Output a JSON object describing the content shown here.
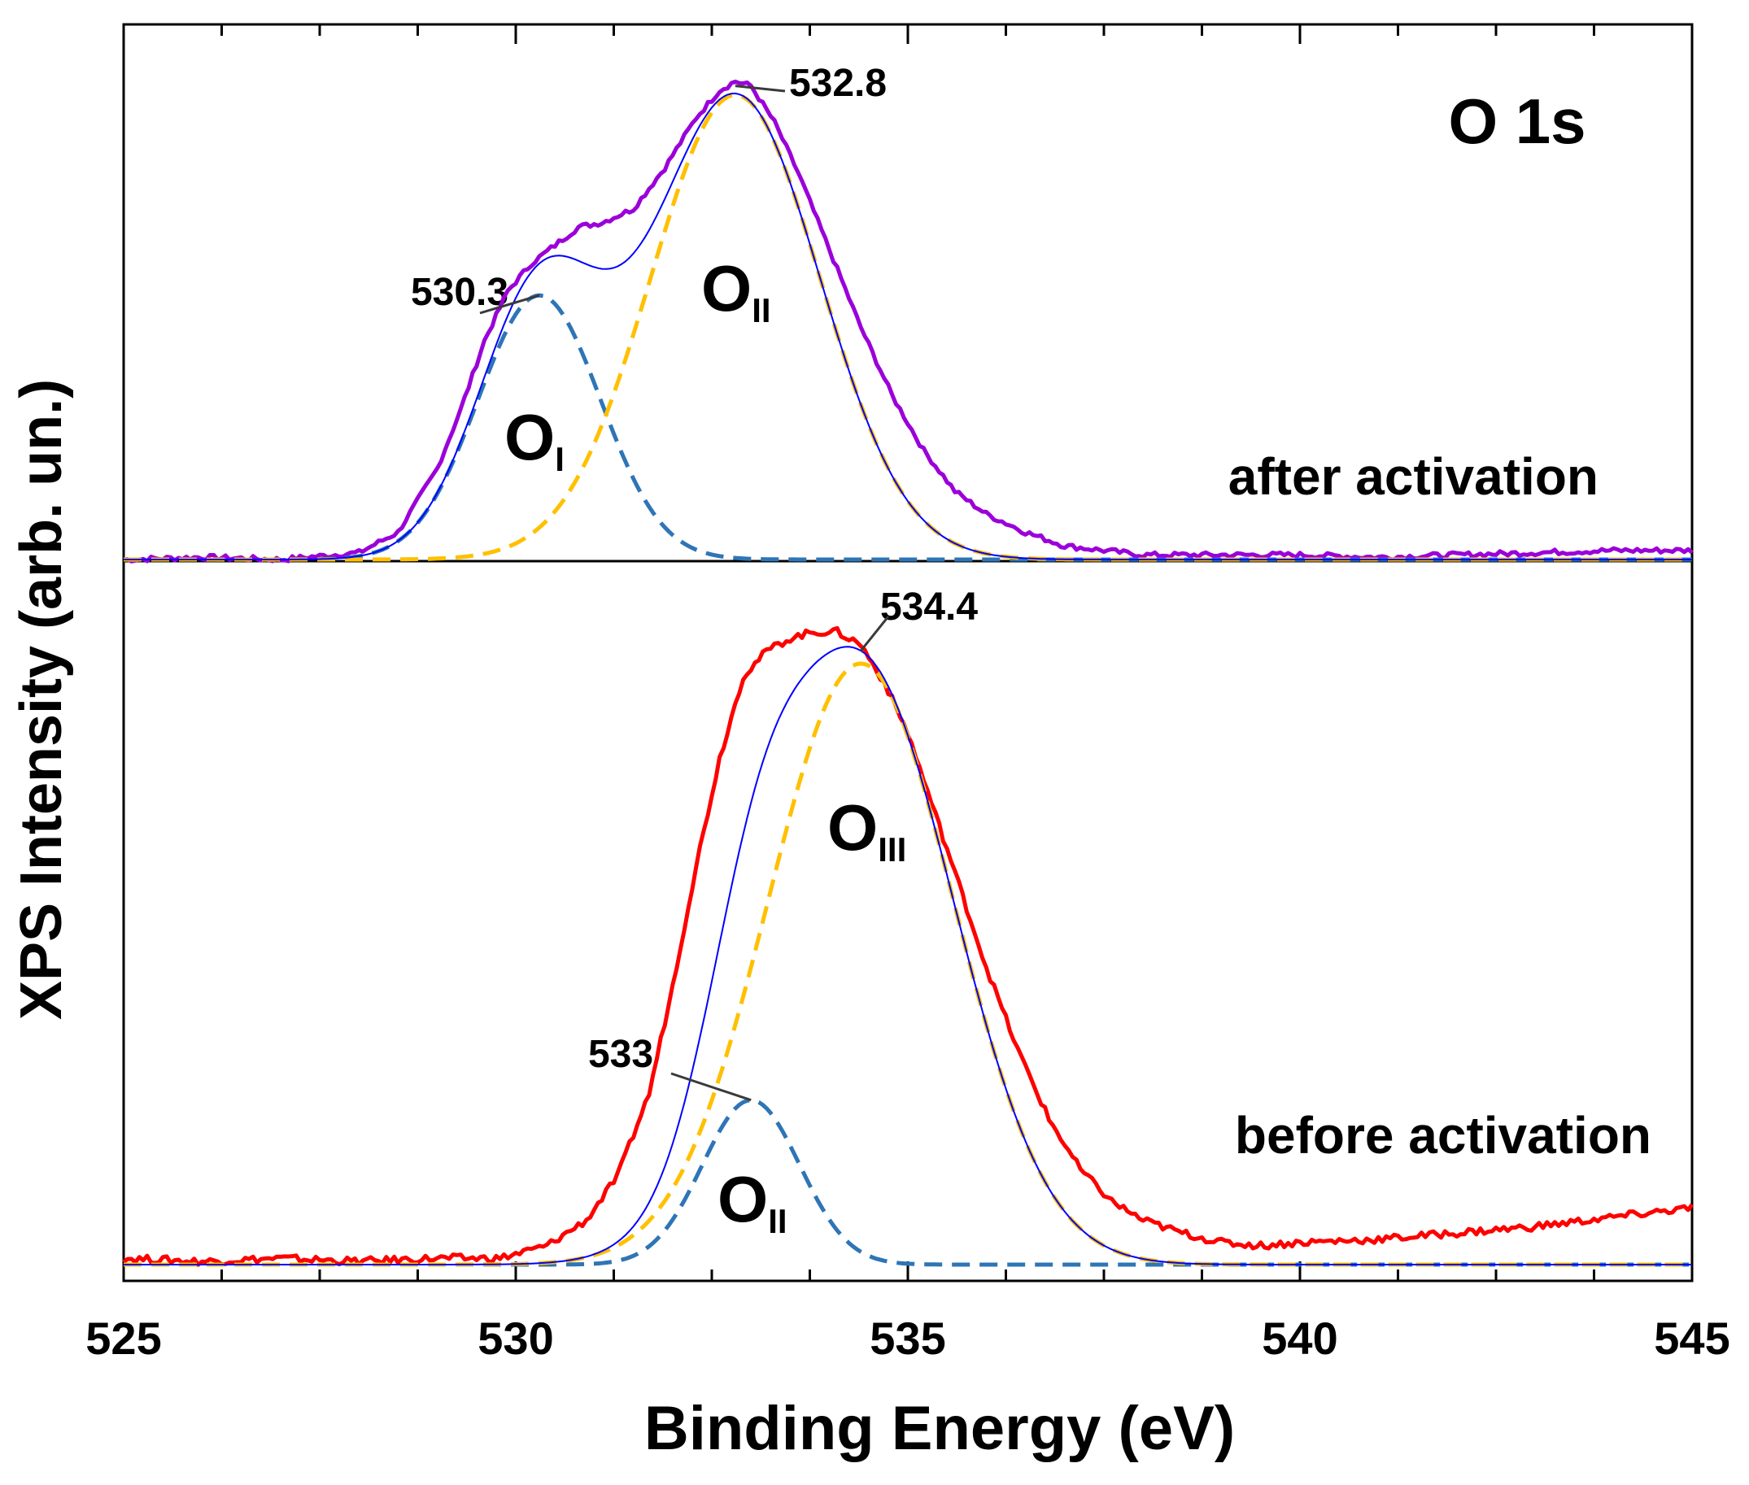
{
  "chart_data": {
    "type": "line",
    "title": "O 1s",
    "xlabel": "Binding Energy (eV)",
    "ylabel": "XPS Intensity (arb. un.)",
    "xlim": [
      525,
      545
    ],
    "x_ticks": [
      525,
      530,
      535,
      540,
      545
    ],
    "x_tick_labels": [
      "525",
      "530",
      "535",
      "540",
      "545"
    ],
    "x_minor_step": 1.25,
    "y_ticks": "none",
    "grid": false,
    "colors": {
      "after_experimental": "#9B00D9",
      "before_experimental": "#FF0000",
      "envelope": "#0000FF",
      "component_gold": "#FFC000",
      "component_teal": "#2E75B6"
    },
    "panels": [
      {
        "id": "after",
        "position": "top",
        "label": "after activation",
        "ylim": [
          0,
          1.12
        ],
        "experimental": {
          "x": [
            525,
            526,
            527,
            528,
            528.5,
            529,
            529.3,
            529.6,
            529.9,
            530.2,
            530.5,
            530.8,
            531.1,
            531.5,
            531.9,
            532.3,
            532.6,
            532.8,
            533.0,
            533.3,
            533.6,
            534.0,
            534.4,
            534.8,
            535.2,
            535.6,
            536.0,
            536.5,
            537.0,
            538.0,
            539.0,
            540.0,
            541.0,
            542.0,
            543.0,
            544.0,
            545.0
          ],
          "y": [
            0.0,
            0.005,
            0.0,
            0.015,
            0.06,
            0.2,
            0.33,
            0.48,
            0.59,
            0.65,
            0.69,
            0.73,
            0.74,
            0.77,
            0.86,
            0.97,
            1.03,
            1.05,
            1.04,
            0.96,
            0.85,
            0.68,
            0.51,
            0.36,
            0.24,
            0.15,
            0.1,
            0.06,
            0.03,
            0.01,
            0.01,
            0.01,
            0.005,
            0.01,
            0.015,
            0.02,
            0.02
          ]
        },
        "components": [
          {
            "name": "O_I",
            "center": 530.3,
            "height": 0.58,
            "sigma": 0.78,
            "color": "#2E75B6"
          },
          {
            "name": "O_II",
            "center": 532.8,
            "height": 1.02,
            "sigma": 1.08,
            "color": "#FFC000"
          }
        ],
        "labels": [
          {
            "symbol": "O",
            "sub": "I"
          },
          {
            "symbol": "O",
            "sub": "II"
          }
        ],
        "annotations": [
          {
            "text": "530.3",
            "x": 530.3,
            "y": 0.58
          },
          {
            "text": "532.8",
            "x": 532.8,
            "y": 1.04
          }
        ]
      },
      {
        "id": "before",
        "position": "bottom",
        "label": "before activation",
        "ylim": [
          0,
          1.12
        ],
        "experimental": {
          "x": [
            525,
            526,
            527,
            528,
            529,
            529.8,
            530.4,
            530.9,
            531.3,
            531.7,
            532.0,
            532.3,
            532.6,
            532.9,
            533.2,
            533.5,
            533.8,
            534.1,
            534.4,
            534.7,
            535.0,
            535.3,
            535.6,
            536.0,
            536.4,
            536.8,
            537.2,
            537.6,
            538.0,
            538.5,
            539.0,
            539.5,
            540.0,
            541.0,
            542.0,
            543.0,
            544.0,
            545.0
          ],
          "y": [
            0.01,
            0.005,
            0.01,
            0.005,
            0.01,
            0.01,
            0.03,
            0.07,
            0.14,
            0.27,
            0.44,
            0.63,
            0.8,
            0.93,
            0.97,
            0.99,
            1.0,
            1.0,
            0.98,
            0.92,
            0.84,
            0.73,
            0.62,
            0.47,
            0.34,
            0.23,
            0.15,
            0.1,
            0.07,
            0.05,
            0.035,
            0.03,
            0.035,
            0.04,
            0.05,
            0.06,
            0.075,
            0.09
          ]
        },
        "components": [
          {
            "name": "O_II",
            "center": 533.0,
            "height": 0.26,
            "sigma": 0.62,
            "color": "#2E75B6"
          },
          {
            "name": "O_III",
            "center": 534.4,
            "height": 0.95,
            "sigma": 1.18,
            "color": "#FFC000"
          }
        ],
        "labels": [
          {
            "symbol": "O",
            "sub": "III"
          },
          {
            "symbol": "O",
            "sub": "II"
          }
        ],
        "annotations": [
          {
            "text": "534.4",
            "x": 534.4,
            "y": 0.97
          },
          {
            "text": "533",
            "x": 533.0,
            "y": 0.26
          }
        ]
      }
    ]
  }
}
